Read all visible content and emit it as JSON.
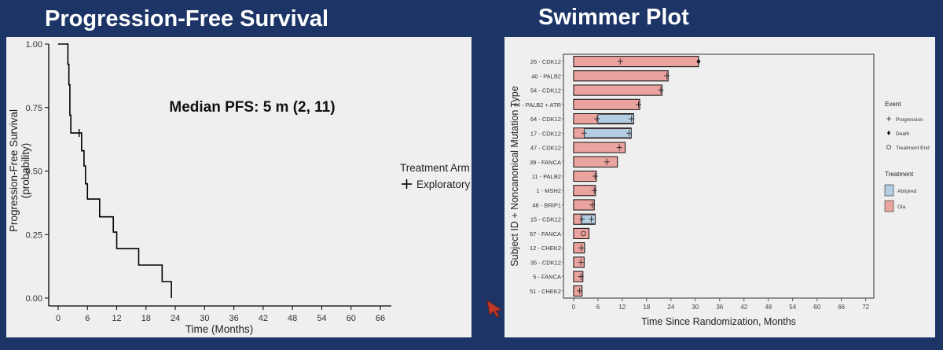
{
  "slide": {
    "left_title": "Progression-Free Survival",
    "right_title": "Swimmer Plot"
  },
  "chart_data": [
    {
      "type": "line",
      "subtype": "kaplan-meier",
      "title": "Progression-Free Survival",
      "annotation": "Median PFS: 5 m (2, 11)",
      "xlabel": "Time (Months)",
      "ylabel": "Progression-Free Survival",
      "ylabel2": "(probability)",
      "xlim": [
        0,
        66
      ],
      "ylim": [
        0,
        1
      ],
      "x_ticks": [
        0,
        6,
        12,
        18,
        24,
        30,
        36,
        42,
        48,
        54,
        60,
        66
      ],
      "y_ticks": [
        "0.00",
        "0.25",
        "0.50",
        "0.75",
        "1.00"
      ],
      "legend_title": "Treatment Arm",
      "legend_placement": "right",
      "series": [
        {
          "name": "Exploratory",
          "color": "#000000",
          "steps": [
            {
              "x": 0,
              "y": 1.0
            },
            {
              "x": 2,
              "y": 0.92
            },
            {
              "x": 2.2,
              "y": 0.84
            },
            {
              "x": 2.4,
              "y": 0.72
            },
            {
              "x": 2.6,
              "y": 0.65
            },
            {
              "x": 4.3,
              "y": 0.65
            },
            {
              "x": 4.8,
              "y": 0.58
            },
            {
              "x": 5.3,
              "y": 0.52
            },
            {
              "x": 5.6,
              "y": 0.45
            },
            {
              "x": 6.0,
              "y": 0.39
            },
            {
              "x": 8.5,
              "y": 0.32
            },
            {
              "x": 11.3,
              "y": 0.26
            },
            {
              "x": 12.0,
              "y": 0.195
            },
            {
              "x": 16.5,
              "y": 0.13
            },
            {
              "x": 21.3,
              "y": 0.065
            },
            {
              "x": 23.2,
              "y": 0.0
            }
          ],
          "censored": [
            {
              "x": 4.3,
              "y": 0.65
            }
          ]
        }
      ]
    },
    {
      "type": "bar",
      "subtype": "swimmer",
      "title": "Swimmer Plot",
      "xlabel": "Time Since Randomization, Months",
      "ylabel": "Subject ID + Noncanonical Mutation Type",
      "xlim": [
        -2.5,
        74
      ],
      "x_ticks": [
        0,
        6,
        12,
        18,
        24,
        30,
        36,
        42,
        48,
        54,
        60,
        66,
        72
      ],
      "legends": [
        {
          "title": "Event",
          "items": [
            "Progression",
            "Death",
            "Treatment End"
          ]
        },
        {
          "title": "Treatment",
          "items": [
            "Abi/pred",
            "Ola"
          ]
        }
      ],
      "colors": {
        "Abi/pred": "#b3cde3",
        "Ola": "#eba39f"
      },
      "subjects": [
        {
          "label": "26 - CDK12",
          "ola": 30.8,
          "abi": 0,
          "progression": 11.5,
          "death": 30.8
        },
        {
          "label": "40 - PALB2",
          "ola": 23.3,
          "abi": 0,
          "progression": 23.0
        },
        {
          "label": "54 - CDK12",
          "ola": 21.8,
          "abi": 0,
          "progression": 21.5
        },
        {
          "label": "44 - PALB2 + ATR",
          "ola": 16.3,
          "abi": 0,
          "progression": 16.0
        },
        {
          "label": "64 - CDK12",
          "ola": 14.8,
          "abi": 14.8,
          "abi_start": 6.0,
          "progression": 5.8,
          "progression2": 14.3
        },
        {
          "label": "17 - CDK12",
          "ola": 14.2,
          "abi": 14.2,
          "abi_start": 2.6,
          "progression": 2.6,
          "progression2": 13.7
        },
        {
          "label": "47 - CDK12",
          "ola": 12.7,
          "abi": 0,
          "progression": 11.3
        },
        {
          "label": "39 - FANCA",
          "ola": 10.8,
          "abi": 0,
          "progression": 8.2
        },
        {
          "label": "11 - PALB2",
          "ola": 5.6,
          "abi": 0,
          "progression": 5.3
        },
        {
          "label": "1 - MSH2",
          "ola": 5.4,
          "abi": 0,
          "progression": 5.1
        },
        {
          "label": "48 - BRIP1",
          "ola": 5.1,
          "abi": 0,
          "progression": 4.6
        },
        {
          "label": "15 - CDK12",
          "ola": 5.3,
          "abi": 5.3,
          "abi_start": 1.8,
          "progression": 2.1,
          "progression2": 4.4
        },
        {
          "label": "57 - FANCA",
          "ola": 3.8,
          "abi": 0,
          "treatment_end": 2.4
        },
        {
          "label": "12 - CHEK2",
          "ola": 2.7,
          "abi": 0,
          "progression": 1.9
        },
        {
          "label": "35 - CDK12",
          "ola": 2.6,
          "abi": 0,
          "progression": 1.8
        },
        {
          "label": "5 - FANCA",
          "ola": 2.3,
          "abi": 0,
          "progression": 1.8
        },
        {
          "label": "51 - CHEK2",
          "ola": 2.1,
          "abi": 0,
          "progression": 1.5
        }
      ]
    }
  ]
}
